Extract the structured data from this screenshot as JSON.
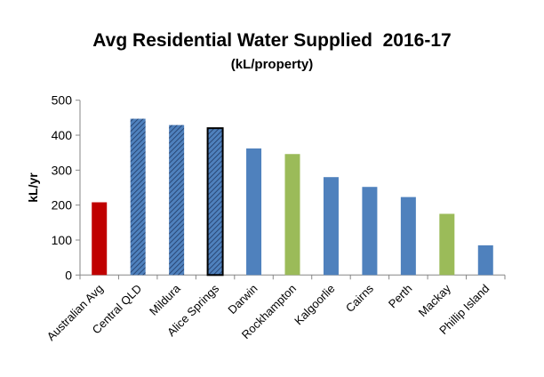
{
  "chart_data": {
    "type": "bar",
    "title": "Avg Residential Water Supplied  2016-17",
    "subtitle": "(kL/property)",
    "xlabel": "",
    "ylabel": "kL/yr",
    "ylim": [
      0,
      500
    ],
    "yticks": [
      0,
      100,
      200,
      300,
      400,
      500
    ],
    "grid": false,
    "categories": [
      "Australian Avg",
      "Central QLD",
      "Mildura",
      "Alice Springs",
      "Darwin",
      "Rockhampton",
      "Kalgoorlie",
      "Cairns",
      "Perth",
      "Mackay",
      "Phillip Island"
    ],
    "values": [
      208,
      447,
      429,
      420,
      362,
      346,
      280,
      252,
      223,
      175,
      85
    ],
    "bar_styles": [
      "red",
      "hatched",
      "hatched",
      "hatched-outlined",
      "blue",
      "green",
      "blue",
      "blue",
      "blue",
      "green",
      "blue"
    ],
    "colors": {
      "red": "#c00000",
      "blue": "#4f81bd",
      "green": "#9bbb59",
      "hatch": "#1f3864"
    }
  }
}
